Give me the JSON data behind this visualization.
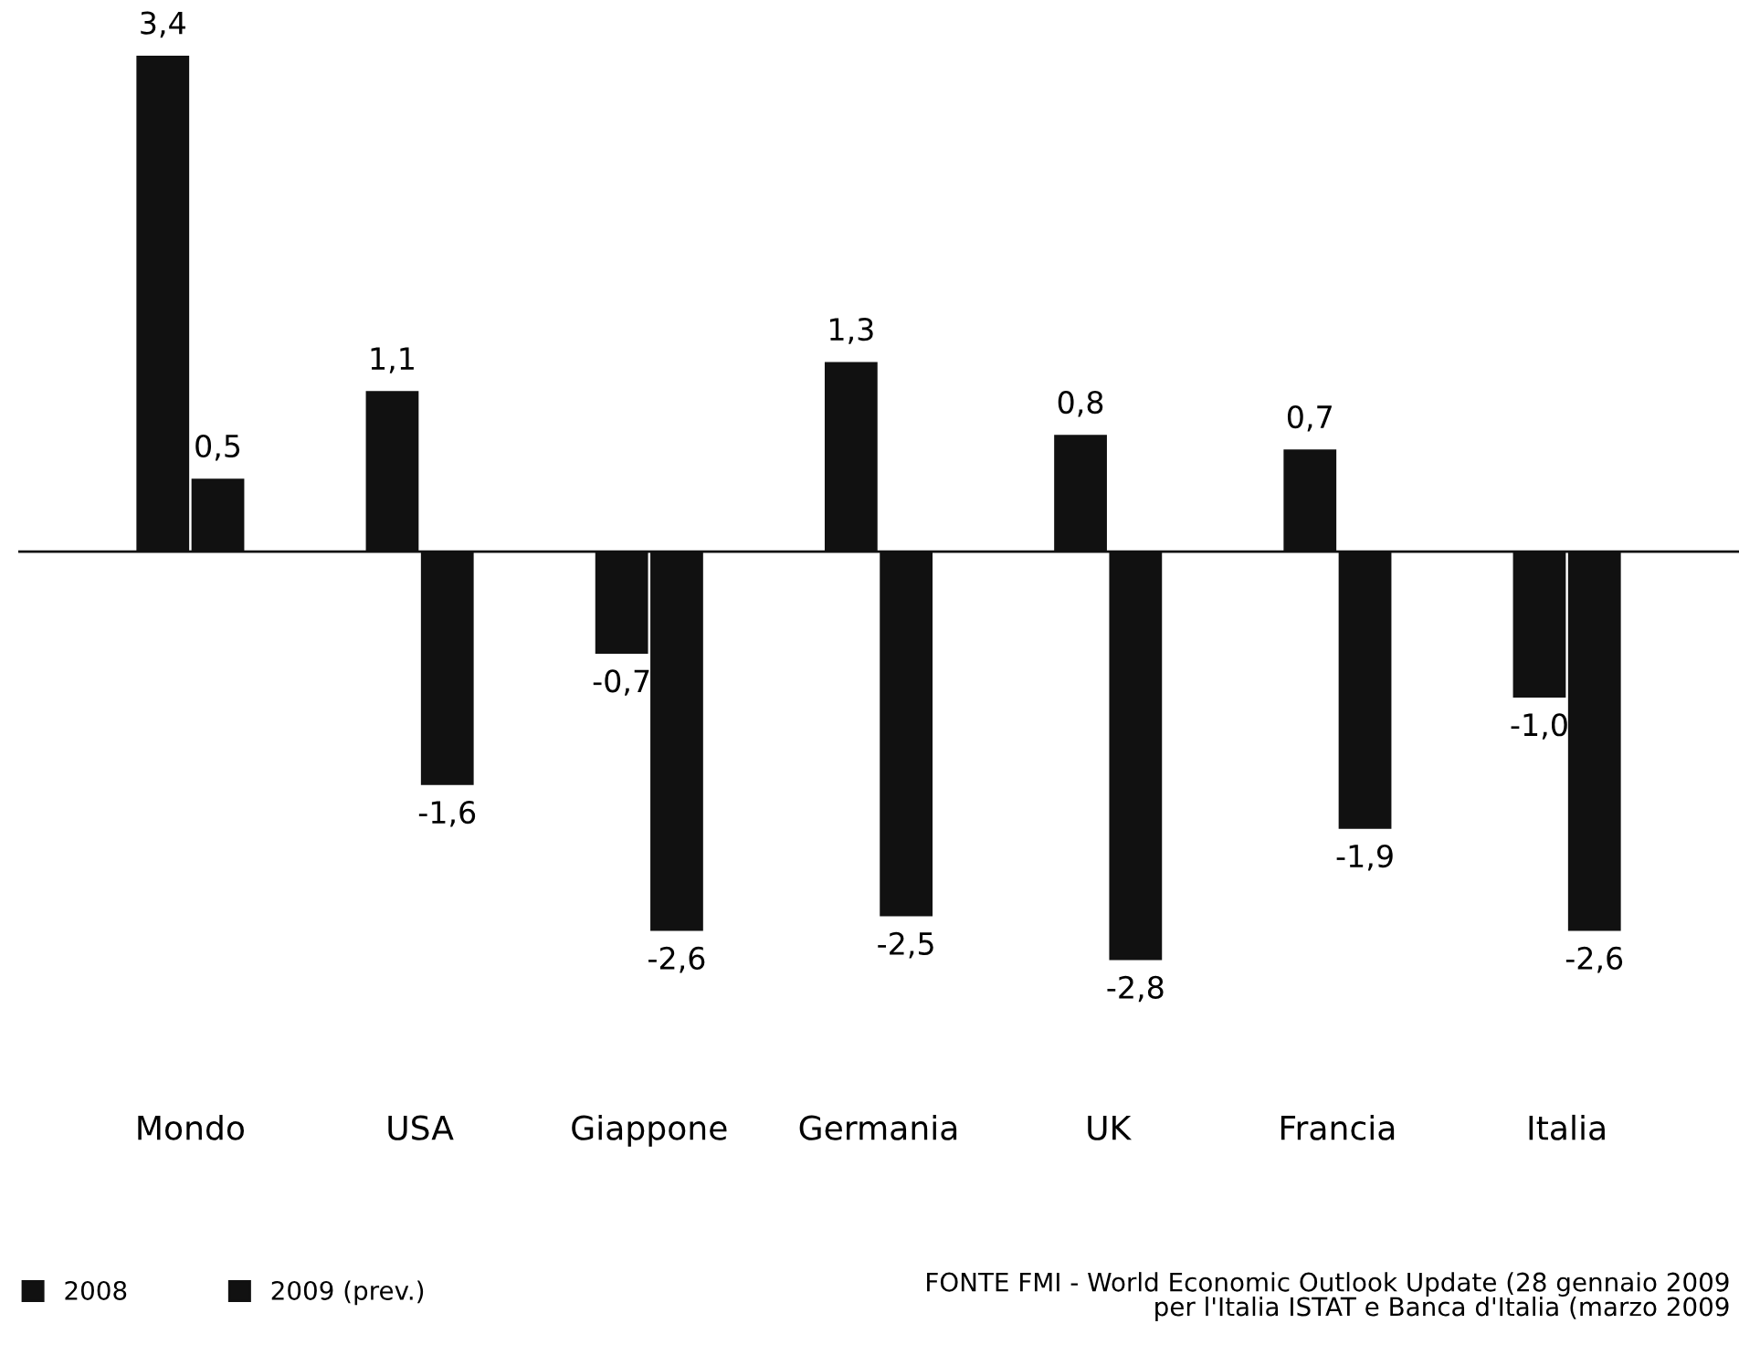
{
  "chart_data": {
    "type": "bar",
    "categories": [
      "Mondo",
      "USA",
      "Giappone",
      "Germania",
      "UK",
      "Francia",
      "Italia"
    ],
    "series": [
      {
        "name": "2008",
        "color": "#111111",
        "values": [
          3.4,
          1.1,
          -0.7,
          1.3,
          0.8,
          0.7,
          -1.0
        ],
        "value_labels": [
          "3,4",
          "1,1",
          "-0,7",
          "1,3",
          "0,8",
          "0,7",
          "-1,0"
        ]
      },
      {
        "name": "2009 (prev.)",
        "color": "#111111",
        "values": [
          0.5,
          -1.6,
          -2.6,
          -2.5,
          -2.8,
          -1.9,
          -2.6
        ],
        "value_labels": [
          "0,5",
          "-1,6",
          "-2,6",
          "-2,5",
          "-2,8",
          "-1,9",
          "-2,6"
        ]
      }
    ],
    "tick_labels": "x",
    "grid": false,
    "legend": "bottom left",
    "annotations": [
      "FONTE FMI - World Economic Outlook Update (28 gennaio 2009\nper l'Italia ISTAT e Banca d'Italia (marzo 2009"
    ]
  }
}
